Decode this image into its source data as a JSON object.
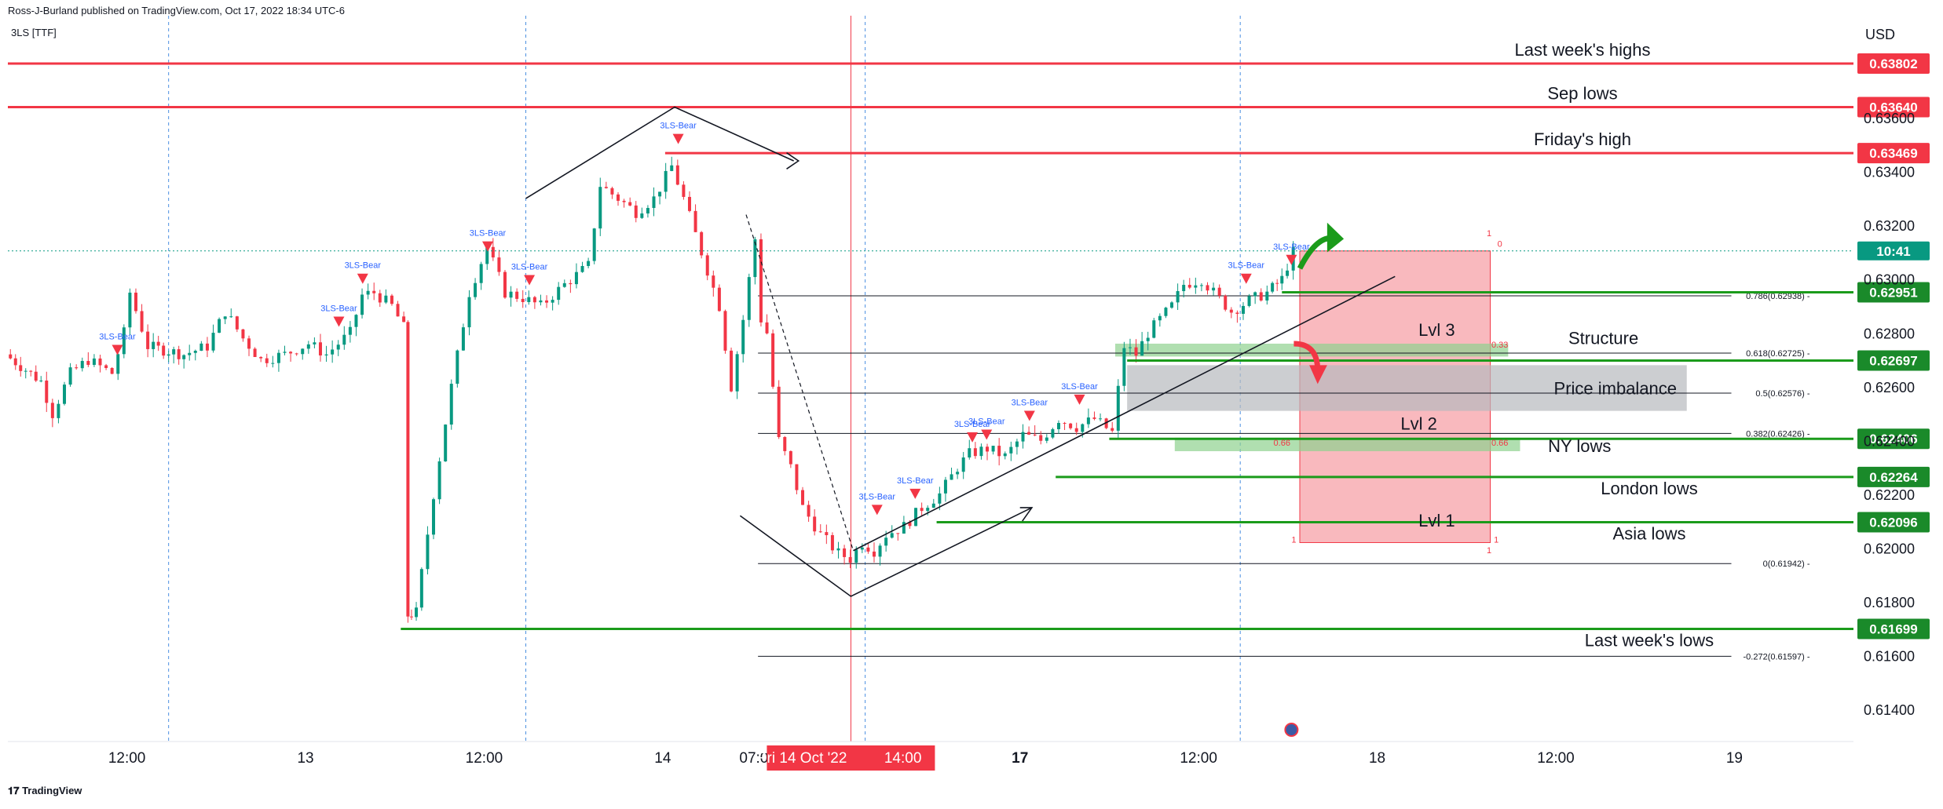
{
  "header": {
    "published": "Ross-J-Burland published on TradingView.com, Oct 17, 2022 18:34 UTC-6",
    "symbol": "3LS [TTF]",
    "currency": "USD",
    "logo_text": "TradingView"
  },
  "colors": {
    "red": "#f23645",
    "green": "#1b9b1b",
    "green_tag": "#1a8a2a",
    "teal_tag": "#089981",
    "bull_candle": "#089981",
    "bear_candle": "#f23645",
    "zone_red": "#f7a1a8",
    "zone_green": "#8fd18f",
    "zone_gray": "#b7b9be",
    "signal_blue": "#2962ff"
  },
  "chart_data": {
    "type": "candlestick",
    "title": "",
    "y_axis": {
      "unit": "USD",
      "ticks": [
        0.614,
        0.616,
        0.618,
        0.62,
        0.622,
        0.624,
        0.626,
        0.628,
        0.63,
        0.632,
        0.634,
        0.636
      ],
      "tick_labels": [
        "0.61400",
        "0.61600",
        "0.61800",
        "0.62000",
        "0.62200",
        "0.62400",
        "0.62600",
        "0.62800",
        "0.63000",
        "0.63200",
        "0.63400",
        "0.63600"
      ],
      "range": [
        0.6128,
        0.6398
      ]
    },
    "x_axis": {
      "labels": [
        {
          "text": "12:00",
          "t": 1.0,
          "bold": false
        },
        {
          "text": "13",
          "t": 2.5,
          "bold": false
        },
        {
          "text": "12:00",
          "t": 4.0,
          "bold": false
        },
        {
          "text": "14",
          "t": 5.5,
          "bold": false
        },
        {
          "text": "07:00",
          "t": 6.3,
          "bold": false
        },
        {
          "text": "17",
          "t": 8.5,
          "bold": true
        },
        {
          "text": "12:00",
          "t": 10.0,
          "bold": false
        },
        {
          "text": "18",
          "t": 11.5,
          "bold": false
        },
        {
          "text": "12:00",
          "t": 13.0,
          "bold": false
        },
        {
          "text": "19",
          "t": 14.5,
          "bold": false
        }
      ],
      "range": [
        0.0,
        15.5
      ],
      "cursor_label": "Fri 14 Oct '22",
      "cursor_time": "14:00"
    },
    "price_lines": [
      {
        "price": 0.63802,
        "label": "0.63802",
        "note": "Last week's highs",
        "color": "red",
        "x_start": 0.0
      },
      {
        "price": 0.6364,
        "label": "0.63640",
        "note": "Sep lows",
        "color": "red",
        "x_start": 0.0
      },
      {
        "price": 0.63469,
        "label": "0.63469",
        "note": "Friday's high",
        "color": "red",
        "x_start": 5.52
      },
      {
        "price": 0.62951,
        "label": "0.62951",
        "note": "",
        "color": "green",
        "x_start": 10.7
      },
      {
        "price": 0.62697,
        "label": "0.62697",
        "note": "",
        "color": "green",
        "x_start": 9.4
      },
      {
        "price": 0.62406,
        "label": "0.62406",
        "note": "",
        "color": "green",
        "x_start": 9.25
      },
      {
        "price": 0.62264,
        "label": "0.62264",
        "note": "London lows",
        "color": "green",
        "x_start": 8.8
      },
      {
        "price": 0.62096,
        "label": "0.62096",
        "note": "Asia lows",
        "color": "green",
        "x_start": 7.8
      },
      {
        "price": 0.61699,
        "label": "0.61699",
        "note": "Last week's lows",
        "color": "green",
        "x_start": 3.3
      }
    ],
    "countdown_tag": {
      "price": 0.63105,
      "label": "10:41"
    },
    "current_price": 0.63105,
    "fib_levels": [
      {
        "ratio": "0.786",
        "price": 0.62938,
        "label": "0.786(0.62938)"
      },
      {
        "ratio": "0.618",
        "price": 0.62725,
        "label": "0.618(0.62725)"
      },
      {
        "ratio": "0.5",
        "price": 0.62576,
        "label": "0.5(0.62576)"
      },
      {
        "ratio": "0.382",
        "price": 0.62426,
        "label": "0.382(0.62426)"
      },
      {
        "ratio": "0",
        "price": 0.61942,
        "label": "0(0.61942)"
      },
      {
        "ratio": "-0.272",
        "price": 0.61597,
        "label": "-0.272(0.61597)"
      }
    ],
    "fib_x_range": [
      6.3,
      15.2
    ],
    "annotations": [
      {
        "text": "Structure",
        "t": 13.4,
        "price": 0.62782
      },
      {
        "text": "Price imbalance",
        "t": 13.5,
        "price": 0.62595
      },
      {
        "text": "NY lows",
        "t": 13.2,
        "price": 0.6238
      },
      {
        "text": "Lvl 3",
        "t": 12.0,
        "price": 0.62812
      },
      {
        "text": "Lvl 2",
        "t": 11.85,
        "price": 0.62464
      },
      {
        "text": "Lvl 1",
        "t": 12.0,
        "price": 0.62103
      }
    ],
    "zones": [
      {
        "name": "red-box",
        "t1": 10.85,
        "t2": 12.45,
        "p_top": 0.63105,
        "p_bot": 0.6202,
        "color": "zone_red"
      },
      {
        "name": "structure-zone",
        "t1": 9.3,
        "t2": 12.6,
        "p_top": 0.6276,
        "p_bot": 0.62712,
        "color": "zone_green"
      },
      {
        "name": "imbalance-zone",
        "t1": 9.4,
        "t2": 14.1,
        "p_top": 0.6268,
        "p_bot": 0.6251,
        "color": "zone_gray"
      },
      {
        "name": "ny-zone",
        "t1": 9.8,
        "t2": 12.7,
        "p_top": 0.6241,
        "p_bot": 0.6236,
        "color": "zone_green"
      }
    ],
    "zone_labels": [
      {
        "text": "1",
        "t": 12.44,
        "price": 0.6316
      },
      {
        "text": "0",
        "t": 12.53,
        "price": 0.6312
      },
      {
        "text": "0.33",
        "t": 12.53,
        "price": 0.62745
      },
      {
        "text": "0.66",
        "t": 12.53,
        "price": 0.6238
      },
      {
        "text": "0.66",
        "t": 10.7,
        "price": 0.6238
      },
      {
        "text": "1",
        "t": 10.8,
        "price": 0.6202
      },
      {
        "text": "1",
        "t": 12.5,
        "price": 0.6202
      },
      {
        "text": "1",
        "t": 12.44,
        "price": 0.6198
      }
    ],
    "signals": [
      {
        "label": "3LS-Bear",
        "t": 0.92,
        "price": 0.62735
      },
      {
        "label": "3LS-Bear",
        "t": 2.78,
        "price": 0.6284
      },
      {
        "label": "3LS-Bear",
        "t": 2.98,
        "price": 0.63
      },
      {
        "label": "3LS-Bear",
        "t": 4.03,
        "price": 0.6312
      },
      {
        "label": "3LS-Bear",
        "t": 4.38,
        "price": 0.62995
      },
      {
        "label": "3LS-Bear",
        "t": 5.63,
        "price": 0.6352
      },
      {
        "label": "3LS-Bear",
        "t": 7.3,
        "price": 0.6214
      },
      {
        "label": "3LS-Bear",
        "t": 7.62,
        "price": 0.622
      },
      {
        "label": "3LS-Bear",
        "t": 8.1,
        "price": 0.6241
      },
      {
        "label": "3LS-Bear",
        "t": 8.22,
        "price": 0.6242
      },
      {
        "label": "3LS-Bear",
        "t": 8.58,
        "price": 0.6249
      },
      {
        "label": "3LS-Bear",
        "t": 9.0,
        "price": 0.6255
      },
      {
        "label": "3LS-Bear",
        "t": 10.4,
        "price": 0.63
      },
      {
        "label": "3LS-Bear",
        "t": 10.78,
        "price": 0.6307
      }
    ],
    "candle_path": [
      [
        0.0,
        0.6272
      ],
      [
        0.3,
        0.6262
      ],
      [
        0.4,
        0.625
      ],
      [
        0.55,
        0.6265
      ],
      [
        0.7,
        0.627
      ],
      [
        0.9,
        0.6265
      ],
      [
        1.0,
        0.628
      ],
      [
        1.05,
        0.6295
      ],
      [
        1.2,
        0.6275
      ],
      [
        1.5,
        0.6272
      ],
      [
        1.7,
        0.6275
      ],
      [
        1.85,
        0.6288
      ],
      [
        2.0,
        0.6278
      ],
      [
        2.15,
        0.627
      ],
      [
        2.35,
        0.6272
      ],
      [
        2.55,
        0.6276
      ],
      [
        2.7,
        0.6272
      ],
      [
        2.9,
        0.628
      ],
      [
        3.0,
        0.6294
      ],
      [
        3.1,
        0.6295
      ],
      [
        3.25,
        0.629
      ],
      [
        3.35,
        0.6282
      ],
      [
        3.37,
        0.6175
      ],
      [
        3.45,
        0.6176
      ],
      [
        3.6,
        0.622
      ],
      [
        3.75,
        0.626
      ],
      [
        3.9,
        0.6295
      ],
      [
        4.05,
        0.6312
      ],
      [
        4.2,
        0.6295
      ],
      [
        4.35,
        0.6293
      ],
      [
        4.5,
        0.629
      ],
      [
        4.7,
        0.6298
      ],
      [
        4.9,
        0.6305
      ],
      [
        5.0,
        0.6335
      ],
      [
        5.15,
        0.633
      ],
      [
        5.3,
        0.6325
      ],
      [
        5.45,
        0.633
      ],
      [
        5.6,
        0.6342
      ],
      [
        5.7,
        0.633
      ],
      [
        5.85,
        0.631
      ],
      [
        6.0,
        0.629
      ],
      [
        6.1,
        0.626
      ],
      [
        6.2,
        0.6285
      ],
      [
        6.3,
        0.6315
      ],
      [
        6.35,
        0.6285
      ],
      [
        6.4,
        0.628
      ],
      [
        6.5,
        0.624
      ],
      [
        6.6,
        0.623
      ],
      [
        6.7,
        0.6215
      ],
      [
        6.85,
        0.6205
      ],
      [
        7.0,
        0.6198
      ],
      [
        7.1,
        0.6196
      ],
      [
        7.2,
        0.6202
      ],
      [
        7.3,
        0.6199
      ],
      [
        7.4,
        0.6205
      ],
      [
        7.55,
        0.6208
      ],
      [
        7.7,
        0.6215
      ],
      [
        7.85,
        0.622
      ],
      [
        8.0,
        0.623
      ],
      [
        8.1,
        0.6235
      ],
      [
        8.25,
        0.6237
      ],
      [
        8.4,
        0.6234
      ],
      [
        8.55,
        0.6242
      ],
      [
        8.7,
        0.624
      ],
      [
        8.85,
        0.6248
      ],
      [
        9.0,
        0.6245
      ],
      [
        9.15,
        0.6248
      ],
      [
        9.3,
        0.6243
      ],
      [
        9.4,
        0.6275
      ],
      [
        9.5,
        0.6272
      ],
      [
        9.6,
        0.628
      ],
      [
        9.8,
        0.629
      ],
      [
        9.9,
        0.6298
      ],
      [
        10.05,
        0.63
      ],
      [
        10.15,
        0.6295
      ],
      [
        10.3,
        0.6288
      ],
      [
        10.45,
        0.6292
      ],
      [
        10.6,
        0.6295
      ],
      [
        10.72,
        0.63
      ],
      [
        10.82,
        0.631
      ]
    ],
    "y_axis_side": "right",
    "grid": false,
    "legend": "none"
  }
}
